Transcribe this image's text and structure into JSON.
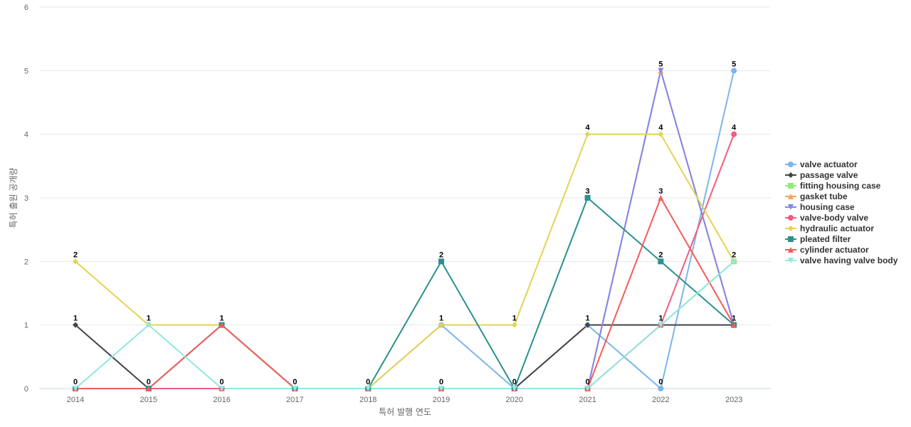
{
  "chart_data": {
    "type": "line",
    "xlabel": "특허 발행 연도",
    "ylabel": "특허 출원 공개량",
    "ylim": [
      0,
      6
    ],
    "yticks": [
      0,
      1,
      2,
      3,
      4,
      5,
      6
    ],
    "grid": true,
    "legend_position": "right",
    "categories": [
      "2014",
      "2015",
      "2016",
      "2017",
      "2018",
      "2019",
      "2020",
      "2021",
      "2022",
      "2023"
    ],
    "series": [
      {
        "name": "valve actuator",
        "color": "#7cb5ec",
        "marker": "circle",
        "values": [
          0,
          0,
          0,
          0,
          0,
          1,
          0,
          1,
          0,
          5
        ]
      },
      {
        "name": "passage valve",
        "color": "#434348",
        "marker": "diamond",
        "values": [
          1,
          0,
          0,
          0,
          0,
          0,
          0,
          1,
          1,
          1
        ]
      },
      {
        "name": "fitting housing case",
        "color": "#90ed7d",
        "marker": "square",
        "values": [
          0,
          0,
          0,
          0,
          0,
          0,
          0,
          0,
          1,
          2
        ]
      },
      {
        "name": "gasket tube",
        "color": "#f7a35c",
        "marker": "triangle",
        "values": [
          0,
          0,
          0,
          0,
          0,
          0,
          0,
          0,
          5,
          1
        ]
      },
      {
        "name": "housing case",
        "color": "#8085e9",
        "marker": "triangle-down",
        "values": [
          0,
          0,
          0,
          0,
          0,
          0,
          0,
          0,
          5,
          1
        ]
      },
      {
        "name": "valve-body valve",
        "color": "#f15c80",
        "marker": "circle",
        "values": [
          0,
          0,
          0,
          0,
          0,
          0,
          0,
          0,
          1,
          4
        ]
      },
      {
        "name": "hydraulic actuator",
        "color": "#e4d354",
        "marker": "diamond",
        "values": [
          2,
          1,
          1,
          0,
          0,
          1,
          1,
          4,
          4,
          2
        ]
      },
      {
        "name": "pleated filter",
        "color": "#2b908f",
        "marker": "square",
        "values": [
          0,
          0,
          1,
          0,
          0,
          2,
          0,
          3,
          2,
          1
        ]
      },
      {
        "name": "cylinder actuator",
        "color": "#f45b5b",
        "marker": "triangle",
        "values": [
          0,
          0,
          1,
          0,
          0,
          0,
          0,
          0,
          3,
          1
        ]
      },
      {
        "name": "valve having valve body",
        "color": "#91e8e1",
        "marker": "triangle-down",
        "values": [
          0,
          1,
          0,
          0,
          0,
          0,
          0,
          0,
          1,
          2
        ]
      }
    ],
    "data_labels": [
      {
        "x": "2014",
        "value": 2
      },
      {
        "x": "2014",
        "value": 1
      },
      {
        "x": "2014",
        "value": 0
      },
      {
        "x": "2015",
        "value": 1
      },
      {
        "x": "2015",
        "value": 0
      },
      {
        "x": "2016",
        "value": 1
      },
      {
        "x": "2016",
        "value": 0
      },
      {
        "x": "2017",
        "value": 0
      },
      {
        "x": "2018",
        "value": 0
      },
      {
        "x": "2019",
        "value": 2
      },
      {
        "x": "2019",
        "value": 1
      },
      {
        "x": "2019",
        "value": 0
      },
      {
        "x": "2020",
        "value": 1
      },
      {
        "x": "2020",
        "value": 0
      },
      {
        "x": "2021",
        "value": 4
      },
      {
        "x": "2021",
        "value": 3
      },
      {
        "x": "2021",
        "value": 1
      },
      {
        "x": "2021",
        "value": 0
      },
      {
        "x": "2022",
        "value": 5
      },
      {
        "x": "2022",
        "value": 4
      },
      {
        "x": "2022",
        "value": 3
      },
      {
        "x": "2022",
        "value": 2
      },
      {
        "x": "2022",
        "value": 1
      },
      {
        "x": "2022",
        "value": 0
      },
      {
        "x": "2023",
        "value": 5
      },
      {
        "x": "2023",
        "value": 4
      },
      {
        "x": "2023",
        "value": 2
      },
      {
        "x": "2023",
        "value": 1
      }
    ]
  }
}
